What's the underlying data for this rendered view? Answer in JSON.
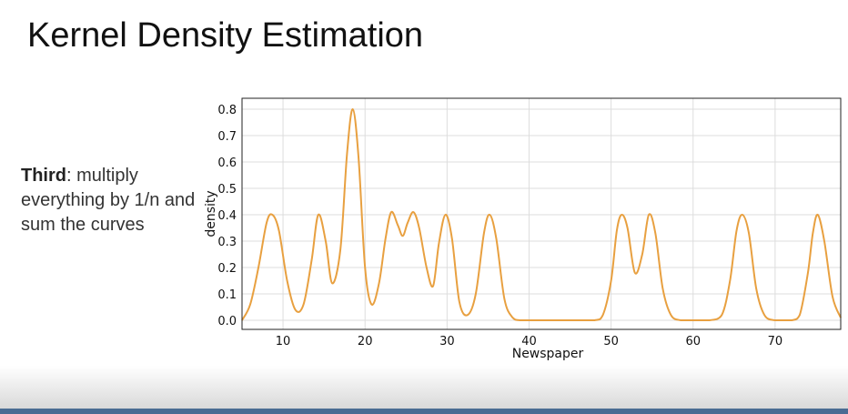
{
  "slide": {
    "title": "Kernel Density Estimation",
    "side_bold": "Third",
    "side_rest": ": multiply everything by 1/n and sum the curves"
  },
  "chart_data": {
    "type": "line",
    "title": "",
    "xlabel": "Newspaper",
    "ylabel": "density",
    "xlim": [
      5,
      78
    ],
    "ylim": [
      0,
      0.8
    ],
    "xticks": [
      10,
      20,
      30,
      40,
      50,
      60,
      70
    ],
    "yticks": [
      0.0,
      0.1,
      0.2,
      0.3,
      0.4,
      0.5,
      0.6,
      0.7,
      0.8
    ],
    "ytick_labels": [
      "0.0",
      "0.1",
      "0.2",
      "0.3",
      "0.4",
      "0.5",
      "0.6",
      "0.7",
      "0.8"
    ],
    "grid": true,
    "color": "#e8a040",
    "series": [
      {
        "x": [
          5,
          6,
          7,
          8,
          8.7,
          9.5,
          10.5,
          11.5,
          12.5,
          13.5,
          14.3,
          15.2,
          16,
          17,
          17.8,
          18.5,
          19.2,
          20,
          20.8,
          21.7,
          22.5,
          23.2,
          24,
          24.6,
          25.2,
          25.9,
          26.6,
          27.5,
          28.3,
          29,
          29.8,
          30.6,
          31.5,
          32.5,
          33.5,
          34.5,
          35.2,
          36,
          37,
          38,
          39,
          42,
          45,
          48,
          49,
          50,
          50.7,
          51.3,
          52,
          52.9,
          53.8,
          54.6,
          55.4,
          56.3,
          57.3,
          58.5,
          60,
          62,
          63.5,
          64.5,
          65.3,
          66,
          66.8,
          67.7,
          68.7,
          70,
          72,
          73,
          74,
          74.6,
          75.2,
          76,
          77,
          78
        ],
        "y": [
          0.0,
          0.06,
          0.2,
          0.37,
          0.4,
          0.34,
          0.15,
          0.04,
          0.06,
          0.23,
          0.4,
          0.3,
          0.14,
          0.27,
          0.63,
          0.8,
          0.62,
          0.2,
          0.06,
          0.14,
          0.31,
          0.41,
          0.36,
          0.32,
          0.37,
          0.41,
          0.35,
          0.2,
          0.13,
          0.29,
          0.4,
          0.31,
          0.07,
          0.02,
          0.1,
          0.33,
          0.4,
          0.31,
          0.08,
          0.01,
          0.0,
          0.0,
          0.0,
          0.0,
          0.02,
          0.15,
          0.34,
          0.4,
          0.35,
          0.18,
          0.25,
          0.4,
          0.33,
          0.12,
          0.02,
          0.0,
          0.0,
          0.0,
          0.02,
          0.15,
          0.34,
          0.4,
          0.33,
          0.12,
          0.02,
          0.0,
          0.0,
          0.02,
          0.18,
          0.33,
          0.4,
          0.3,
          0.09,
          0.01
        ]
      }
    ]
  }
}
